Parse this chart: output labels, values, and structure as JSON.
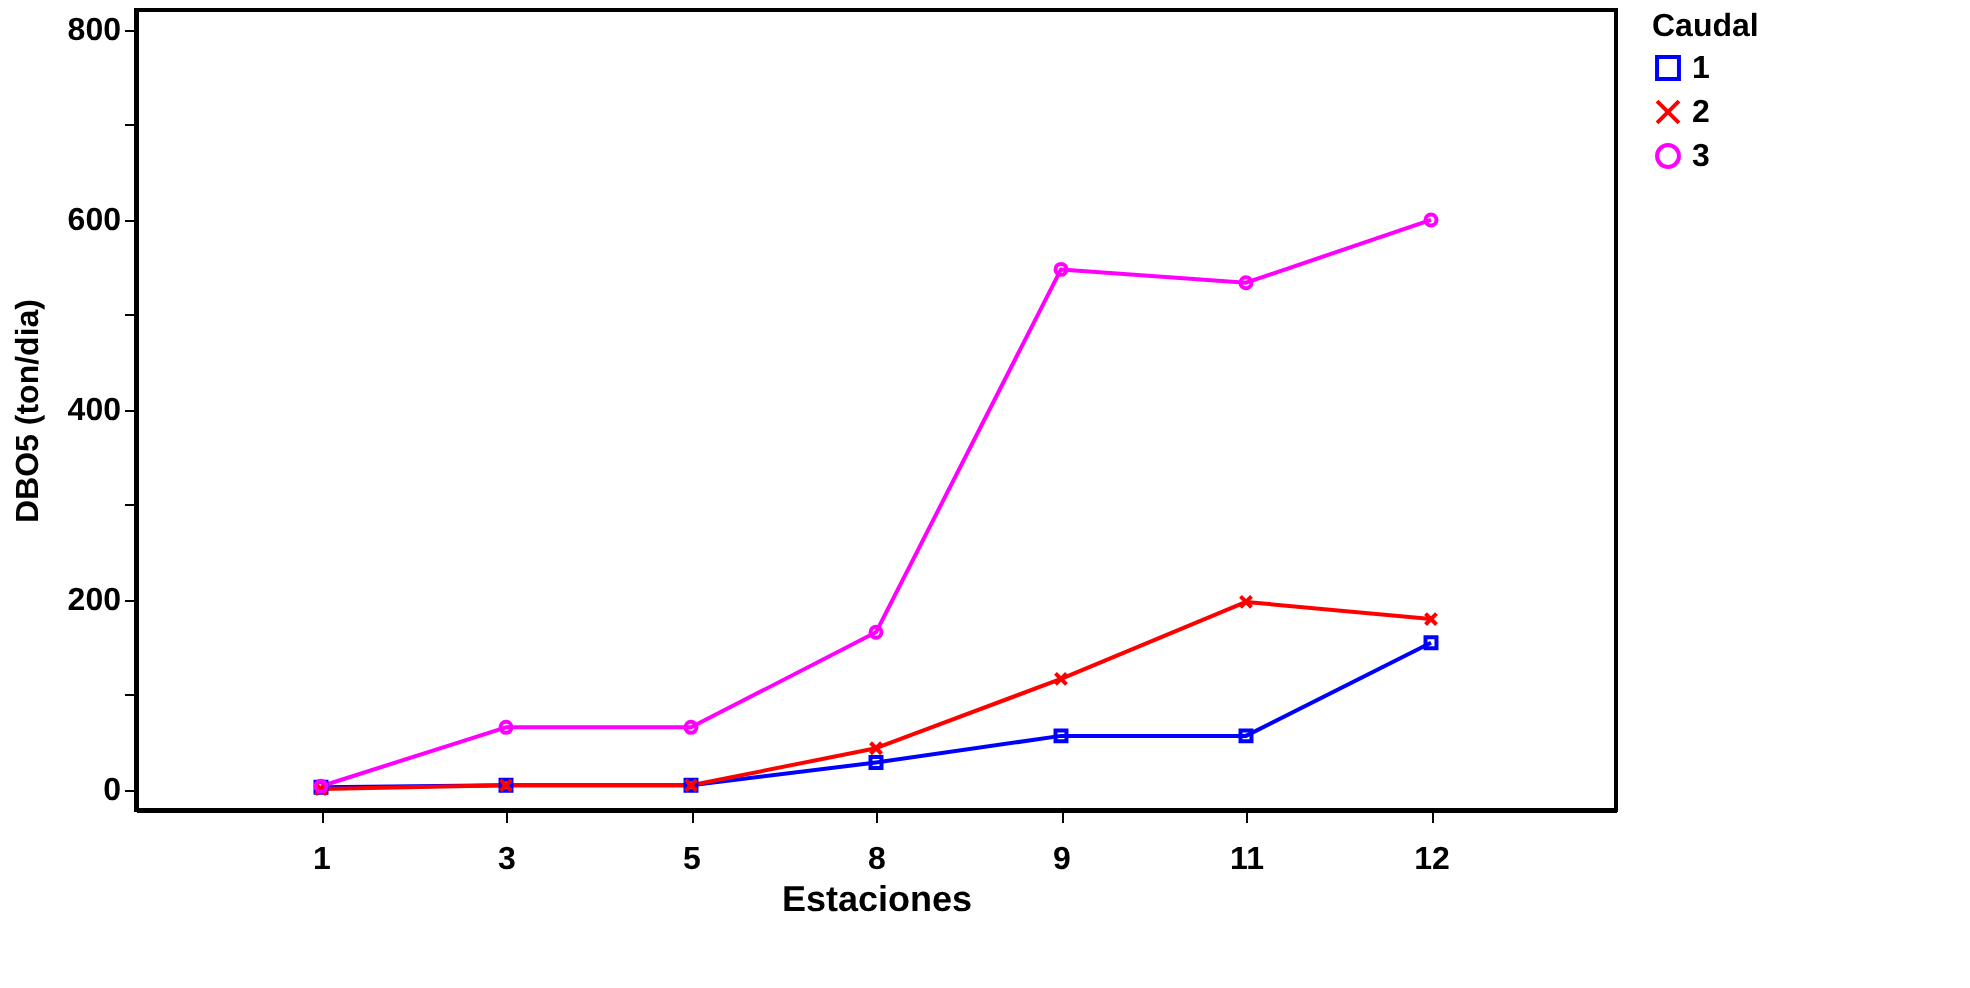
{
  "chart_data": {
    "type": "line",
    "xlabel": "Estaciones",
    "ylabel": "DBO5 (ton/dia)",
    "legend_title": "Caudal",
    "legend": "top right",
    "grid": false,
    "categories": [
      "1",
      "3",
      "5",
      "8",
      "9",
      "11",
      "12"
    ],
    "ylim": [
      -22,
      820
    ],
    "yticks": [
      0,
      {
        "value": 100,
        "label": null
      },
      200,
      {
        "value": 300,
        "label": null
      },
      400,
      {
        "value": 500,
        "label": null
      },
      600,
      {
        "value": 700,
        "label": null
      },
      800
    ],
    "series": [
      {
        "name": "1",
        "color": "#0000ff",
        "marker": "square",
        "values": [
          2,
          4,
          4,
          28,
          56,
          56,
          154
        ]
      },
      {
        "name": "2",
        "color": "#ff0000",
        "marker": "cross",
        "values": [
          0,
          4,
          4,
          43,
          116,
          197,
          179
        ]
      },
      {
        "name": "3",
        "color": "#ff00ff",
        "marker": "circle",
        "values": [
          3,
          65,
          65,
          165,
          547,
          533,
          599
        ]
      }
    ]
  }
}
